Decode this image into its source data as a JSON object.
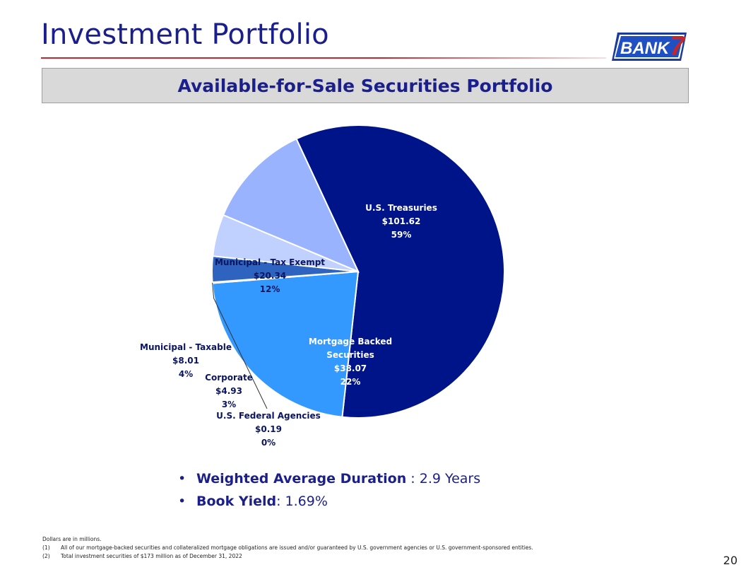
{
  "header": {
    "title": "Investment Portfolio",
    "logo_text": "BANK",
    "logo_number": "7"
  },
  "subtitle": "Available-for-Sale Securities Portfolio",
  "chart_data": {
    "type": "pie",
    "title": "Available-for-Sale Securities Portfolio",
    "units": "Dollars in millions",
    "slices": [
      {
        "name": "U.S. Treasuries",
        "value": 101.62,
        "value_label": "$101.62",
        "pct_label": "59%",
        "color": "#001489"
      },
      {
        "name": "Mortgage Backed Securities",
        "name_lines": [
          "Mortgage Backed",
          "Securities"
        ],
        "value": 38.07,
        "value_label": "$38.07",
        "pct_label": "22%",
        "color": "#3399ff"
      },
      {
        "name": "U.S. Federal Agencies",
        "value": 0.19,
        "value_label": "$0.19",
        "pct_label": "0%",
        "color": "#1f3fa3"
      },
      {
        "name": "Corporate",
        "value": 4.93,
        "value_label": "$4.93",
        "pct_label": "3%",
        "color": "#2e64c0"
      },
      {
        "name": "Municipal - Taxable",
        "value": 8.01,
        "value_label": "$8.01",
        "pct_label": "4%",
        "color": "#c0d0ff"
      },
      {
        "name": "Municipal - Tax Exempt",
        "value": 20.34,
        "value_label": "$20.34",
        "pct_label": "12%",
        "color": "#99b3ff"
      }
    ],
    "colors": {
      "label_dark": "#0b1560",
      "label_light": "#ffffff"
    }
  },
  "bullets": [
    {
      "label": "Weighted Average Duration",
      "value": " : 2.9 Years"
    },
    {
      "label": "Book Yield",
      "value": ": 1.69%"
    }
  ],
  "footnotes": {
    "intro": "Dollars are in millions.",
    "notes": [
      {
        "num": "(1)",
        "text": "All of our mortgage-backed securities and collateralized mortgage obligations are issued and/or guaranteed by U.S. government agencies or U.S. government-sponsored entities."
      },
      {
        "num": "(2)",
        "text": "Total investment securities of $173 million as of December 31, 2022"
      }
    ]
  },
  "page_number": "20",
  "colors": {
    "brand": "#1a1f8c",
    "accent": "#c0282d"
  }
}
